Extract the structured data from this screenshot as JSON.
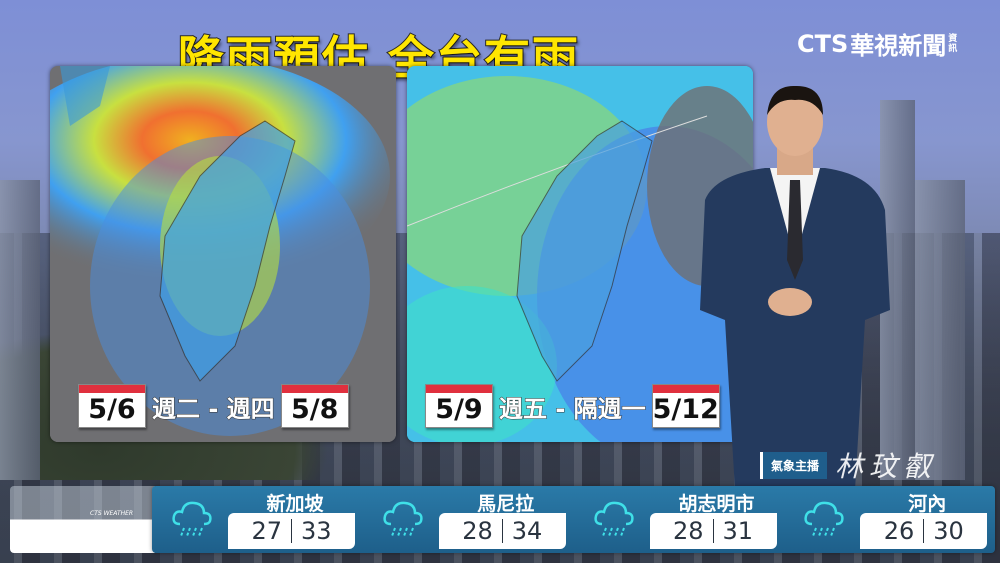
{
  "headline": "降雨預估 全台有雨",
  "logo": {
    "brand": "CTS",
    "name": "華視新聞",
    "sub1": "資",
    "sub2": "訊"
  },
  "maps": [
    {
      "start_date": "5/6",
      "range": "週二 - 週四",
      "end_date": "5/8"
    },
    {
      "start_date": "5/9",
      "range": "週五 - 隔週一",
      "end_date": "5/12"
    }
  ],
  "anchor": {
    "label": "氣象主播",
    "signature": "林玟叡"
  },
  "strip_watermark": "CTS WEATHER",
  "cities": [
    {
      "name": "新加坡",
      "low": "27",
      "high": "33",
      "icon": "rain-cloud-icon"
    },
    {
      "name": "馬尼拉",
      "low": "28",
      "high": "34",
      "icon": "rain-cloud-icon"
    },
    {
      "name": "胡志明市",
      "low": "28",
      "high": "31",
      "icon": "rain-cloud-icon"
    },
    {
      "name": "河內",
      "low": "26",
      "high": "30",
      "icon": "rain-cloud-icon"
    }
  ],
  "colors": {
    "headline": "#ffe600",
    "calendar_top": "#e0303e",
    "strip": "#2a7aa8",
    "icon": "#3fe0e8"
  }
}
